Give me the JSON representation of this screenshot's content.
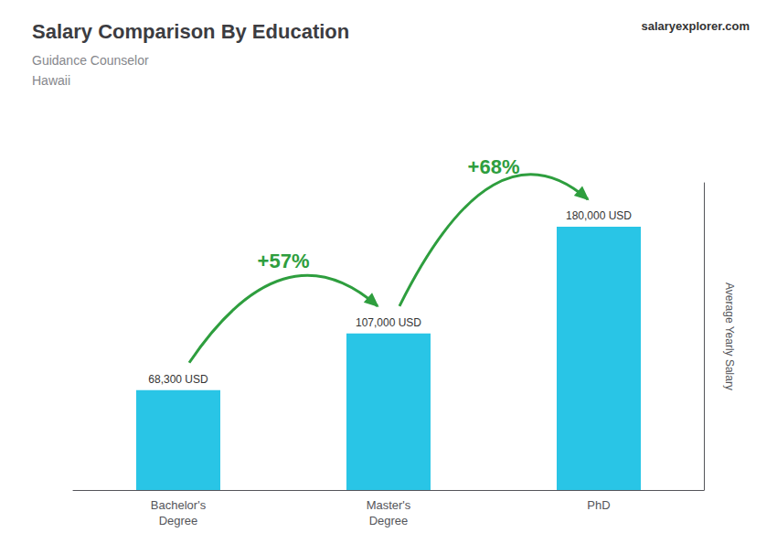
{
  "chart_data": {
    "type": "bar",
    "title": "Salary Comparison By Education",
    "subtitle": [
      "Guidance Counselor",
      "Hawaii"
    ],
    "source": "salaryexplorer.com",
    "ylabel": "Average Yearly Salary",
    "categories": [
      "Bachelor's\nDegree",
      "Master's\nDegree",
      "PhD"
    ],
    "values": [
      68300,
      107000,
      180000
    ],
    "value_labels": [
      "68,300 USD",
      "107,000 USD",
      "180,000 USD"
    ],
    "data_labels": true,
    "annotations": [
      "+57%",
      "+68%"
    ],
    "color": "#29c5e6",
    "ylim": [
      0,
      210000
    ],
    "tick_labels": "x",
    "grid": false
  }
}
